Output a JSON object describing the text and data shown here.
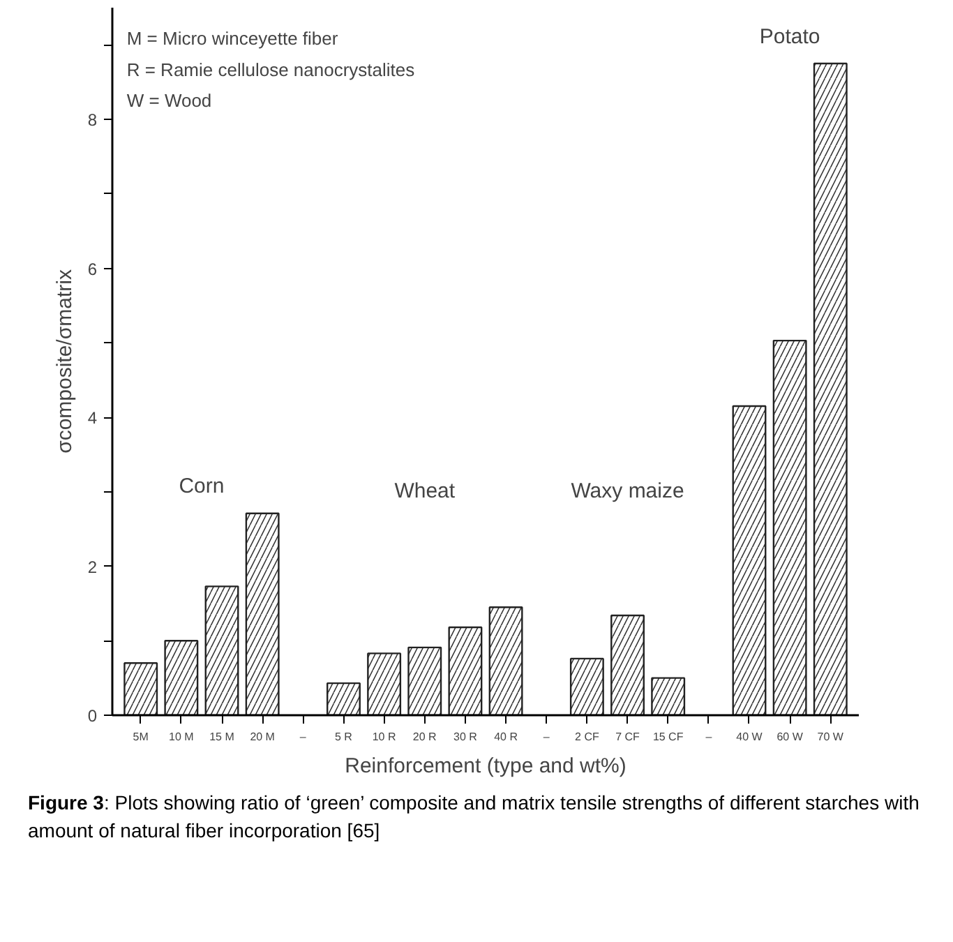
{
  "chart_data": {
    "type": "bar",
    "xlabel": "Reinforcement (type and wt%)",
    "ylabel": "σcomposite/σmatrix",
    "categories": [
      "5M",
      "10 M",
      "15 M",
      "20 M",
      "–",
      "5 R",
      "10 R",
      "20 R",
      "30 R",
      "40 R",
      "–",
      "2 CF",
      "7 CF",
      "15 CF",
      "–",
      "40 W",
      "60 W",
      "70 W"
    ],
    "values": [
      0.7,
      1.0,
      1.73,
      2.71,
      null,
      0.43,
      0.83,
      0.91,
      1.18,
      1.45,
      null,
      0.76,
      1.34,
      0.5,
      null,
      4.15,
      5.03,
      8.75
    ],
    "color": "#ffffff",
    "ylim": [
      0,
      9.5
    ],
    "yticks": [
      0,
      {
        "value": 1,
        "label": null
      },
      2,
      {
        "value": 3,
        "label": null
      },
      4,
      {
        "value": 5,
        "label": null
      },
      6,
      {
        "value": 7,
        "label": null
      },
      8,
      {
        "value": 9,
        "label": null
      }
    ],
    "grid": false,
    "annotations": [
      "Corn",
      "Wheat",
      "Waxy maize",
      "Potato",
      "M = Micro winceyette fiber",
      "R = Ramie cellulose nanocrystalites",
      "W = Wood",
      "Figure 3: Plots showing ratio of ‘green’ composite and matrix tensile strengths of different starches with amount of natural fiber incorporation [65]"
    ]
  }
}
